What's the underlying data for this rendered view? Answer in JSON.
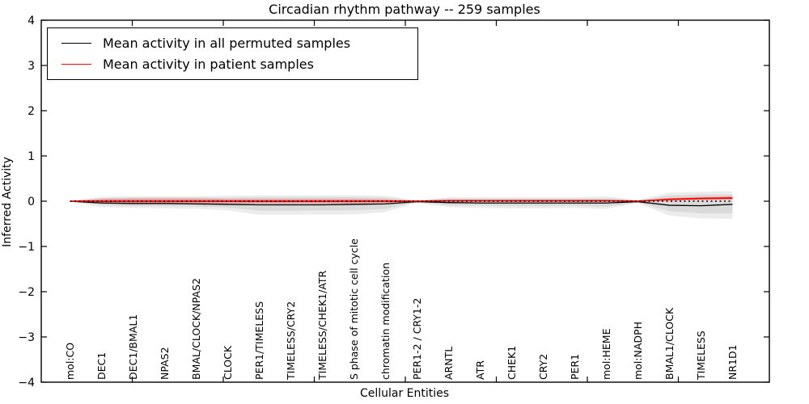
{
  "chart_data": {
    "type": "line",
    "title": "Circadian rhythm pathway -- 259 samples",
    "xlabel": "Cellular Entities",
    "ylabel": "Inferred Activity",
    "ylim": [
      -4,
      4
    ],
    "yticks": [
      -4,
      -3,
      -2,
      -1,
      0,
      1,
      2,
      3,
      4
    ],
    "grid": false,
    "legend_position": "upper-left",
    "categories": [
      "mol:CO",
      "DEC1",
      "DEC1/BMAL1",
      "NPAS2",
      "BMAL/CLOCK/NPAS2",
      "CLOCK",
      "PER1/TIMELESS",
      "TIMELESS/CRY2",
      "TIMELESS/CHEK1/ATR",
      "S phase of mitotic cell cycle",
      "chromatin modification",
      "PER1-2 / CRY1-2",
      "ARNTL",
      "ATR",
      "CHEK1",
      "CRY2",
      "PER1",
      "mol:HEME",
      "mol:NADPH",
      "BMAL1/CLOCK",
      "TIMELESS",
      "NR1D1"
    ],
    "series": [
      {
        "name": "Mean activity in all permuted samples",
        "color": "#000000",
        "style": "solid",
        "width": 1.3,
        "values": [
          0,
          -0.04,
          -0.05,
          -0.05,
          -0.06,
          -0.07,
          -0.08,
          -0.08,
          -0.08,
          -0.07,
          -0.06,
          -0.01,
          -0.03,
          -0.04,
          -0.04,
          -0.04,
          -0.04,
          -0.04,
          -0.01,
          -0.09,
          -0.1,
          -0.07
        ]
      },
      {
        "name": "Mean activity in patient samples",
        "color": "#ff0000",
        "style": "solid",
        "width": 1.8,
        "values": [
          0,
          0,
          0,
          0,
          0,
          0,
          0,
          0,
          0,
          0,
          0,
          0,
          0.01,
          0.01,
          0.01,
          0.01,
          0.01,
          0.01,
          0,
          0.04,
          0.06,
          0.07
        ]
      }
    ],
    "zero_line": {
      "value": 0,
      "style": "dotted",
      "color": "#000000"
    },
    "bands": [
      {
        "name": "permuted-range-outer",
        "color": "#000000",
        "opacity": 0.075,
        "upper": [
          0.01,
          0.1,
          0.11,
          0.11,
          0.11,
          0.12,
          0.13,
          0.13,
          0.13,
          0.13,
          0.12,
          0.02,
          0.09,
          0.09,
          0.09,
          0.09,
          0.09,
          0.11,
          0.03,
          0.19,
          0.21,
          0.22
        ],
        "lower": [
          -0.01,
          -0.13,
          -0.15,
          -0.16,
          -0.17,
          -0.2,
          -0.3,
          -0.3,
          -0.29,
          -0.29,
          -0.24,
          -0.03,
          -0.13,
          -0.15,
          -0.16,
          -0.16,
          -0.15,
          -0.17,
          -0.04,
          -0.32,
          -0.38,
          -0.39
        ]
      },
      {
        "name": "permuted-range-inner",
        "color": "#000000",
        "opacity": 0.075,
        "upper": [
          0.005,
          0.07,
          0.08,
          0.08,
          0.08,
          0.08,
          0.09,
          0.09,
          0.09,
          0.09,
          0.08,
          0.01,
          0.06,
          0.06,
          0.06,
          0.06,
          0.06,
          0.07,
          0.02,
          0.13,
          0.15,
          0.15
        ],
        "lower": [
          -0.005,
          -0.09,
          -0.11,
          -0.11,
          -0.12,
          -0.14,
          -0.21,
          -0.21,
          -0.2,
          -0.2,
          -0.17,
          -0.02,
          -0.09,
          -0.1,
          -0.11,
          -0.11,
          -0.1,
          -0.12,
          -0.03,
          -0.22,
          -0.27,
          -0.27
        ]
      },
      {
        "name": "patient-range",
        "color": "#ff0000",
        "opacity": 0.28,
        "upper": [
          0.005,
          0.05,
          0.06,
          0.06,
          0.06,
          0.05,
          0.05,
          0.05,
          0.05,
          0.05,
          0.04,
          0.01,
          0.03,
          0.03,
          0.03,
          0.03,
          0.03,
          0.03,
          0.01,
          0.07,
          0.09,
          0.1
        ],
        "lower": [
          -0.005,
          -0.05,
          -0.06,
          -0.06,
          -0.06,
          -0.05,
          -0.05,
          -0.05,
          -0.05,
          -0.05,
          -0.04,
          -0.01,
          -0.01,
          -0.01,
          -0.01,
          -0.01,
          -0.01,
          -0.01,
          -0.01,
          0.01,
          0.03,
          0.04
        ]
      }
    ]
  }
}
